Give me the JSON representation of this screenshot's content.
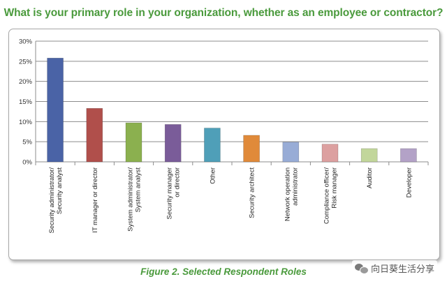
{
  "title": "What is your primary role in your organization, whether as an employee or contractor?",
  "caption": "Figure 2. Selected Respondent Roles",
  "watermark": {
    "text": "向日葵生活分享",
    "icon": "wechat-icon"
  },
  "chart_data": {
    "type": "bar",
    "title": "What is your primary role in your organization, whether as an employee or contractor?",
    "xlabel": "",
    "ylabel": "",
    "ylim": [
      0,
      30
    ],
    "yticks": [
      0,
      5,
      10,
      15,
      20,
      25,
      30
    ],
    "ytick_labels": [
      "0%",
      "5%",
      "10%",
      "15%",
      "20%",
      "25%",
      "30%"
    ],
    "grid": true,
    "legend": "none",
    "categories": [
      [
        "Security administrator/",
        "Security analyst"
      ],
      [
        "IT manager or director"
      ],
      [
        "System administrator/",
        "System analyst"
      ],
      [
        "Security manager",
        "or director"
      ],
      [
        "Other"
      ],
      [
        "Security architect"
      ],
      [
        "Network operation",
        "administrator"
      ],
      [
        "Compliance officer/",
        "Risk manager"
      ],
      [
        "Auditor"
      ],
      [
        "Developer"
      ]
    ],
    "values": [
      25.8,
      13.3,
      9.7,
      9.3,
      8.4,
      6.6,
      4.9,
      4.4,
      3.3,
      3.3
    ],
    "colors": [
      "#4a63a6",
      "#b04f4b",
      "#8bb04f",
      "#7a5c99",
      "#4f9fb8",
      "#e08a3a",
      "#98acd6",
      "#dca0a0",
      "#c2d69b",
      "#b3a2c7"
    ]
  }
}
